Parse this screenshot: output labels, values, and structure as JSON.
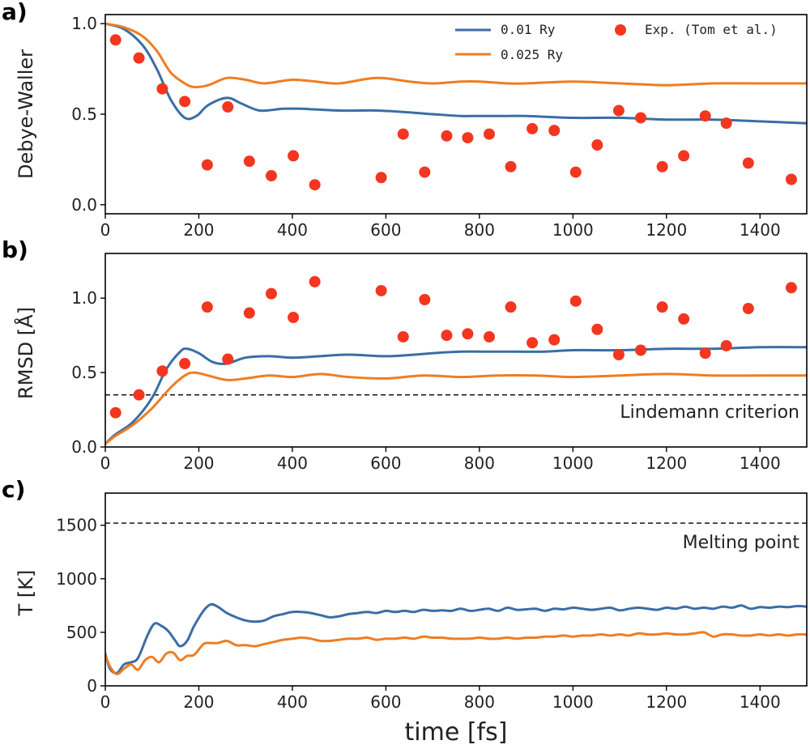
{
  "colors": {
    "blue": "#3a6ea5",
    "orange": "#ef7d22",
    "exp": "#f2361f"
  },
  "chart_data": [
    {
      "panel": "a)",
      "type": "line",
      "ylabel": "Debye-Waller",
      "xlim": [
        0,
        1500
      ],
      "ylim": [
        -0.05,
        1.05
      ],
      "xticks": [
        0,
        200,
        400,
        600,
        800,
        1000,
        1200,
        1400
      ],
      "yticks": [
        0.0,
        0.5,
        1.0
      ],
      "ytick_labels": [
        "0.0",
        "0.5",
        "1.0"
      ],
      "legend": {
        "position": "top-right",
        "entries": [
          "0.01 Ry",
          "0.025 Ry",
          "Exp. (Tom et al.)"
        ]
      },
      "series": [
        {
          "name": "0.01 Ry",
          "color": "blue",
          "x": [
            0,
            40,
            80,
            110,
            140,
            170,
            195,
            220,
            260,
            290,
            330,
            380,
            420,
            500,
            580,
            650,
            700,
            760,
            800,
            860,
            900,
            1000,
            1100,
            1200,
            1300,
            1400,
            1500
          ],
          "y": [
            1.0,
            0.97,
            0.88,
            0.75,
            0.58,
            0.48,
            0.49,
            0.55,
            0.59,
            0.56,
            0.52,
            0.53,
            0.53,
            0.52,
            0.52,
            0.51,
            0.5,
            0.49,
            0.49,
            0.49,
            0.49,
            0.48,
            0.48,
            0.47,
            0.47,
            0.46,
            0.45
          ]
        },
        {
          "name": "0.025 Ry",
          "color": "orange",
          "x": [
            0,
            40,
            80,
            110,
            140,
            170,
            190,
            220,
            260,
            300,
            340,
            400,
            450,
            500,
            580,
            650,
            700,
            760,
            800,
            860,
            900,
            1000,
            1100,
            1200,
            1300,
            1400,
            1500
          ],
          "y": [
            1.0,
            0.98,
            0.93,
            0.85,
            0.73,
            0.67,
            0.65,
            0.66,
            0.7,
            0.69,
            0.67,
            0.69,
            0.68,
            0.67,
            0.7,
            0.68,
            0.67,
            0.68,
            0.68,
            0.67,
            0.67,
            0.68,
            0.67,
            0.66,
            0.67,
            0.67,
            0.67
          ]
        }
      ],
      "scatter": {
        "name": "Exp. (Tom et al.)",
        "color": "exp",
        "x": [
          22,
          72,
          122,
          170,
          218,
          262,
          308,
          355,
          402,
          448,
          590,
          637,
          683,
          730,
          775,
          821,
          867,
          913,
          960,
          1006,
          1052,
          1098,
          1145,
          1191,
          1237,
          1283,
          1328,
          1375,
          1467
        ],
        "y": [
          0.91,
          0.81,
          0.64,
          0.57,
          0.22,
          0.54,
          0.24,
          0.16,
          0.27,
          0.11,
          0.15,
          0.39,
          0.18,
          0.38,
          0.37,
          0.39,
          0.21,
          0.42,
          0.41,
          0.18,
          0.33,
          0.52,
          0.48,
          0.21,
          0.27,
          0.49,
          0.45,
          0.23,
          0.14
        ]
      }
    },
    {
      "panel": "b)",
      "type": "line",
      "ylabel": "RMSD [Å]",
      "xlim": [
        0,
        1500
      ],
      "ylim": [
        0.0,
        1.3
      ],
      "xticks": [
        0,
        200,
        400,
        600,
        800,
        1000,
        1200,
        1400
      ],
      "yticks": [
        0.0,
        0.5,
        1.0
      ],
      "ytick_labels": [
        "0.0",
        "0.5",
        "1.0"
      ],
      "reference": {
        "y": 0.35,
        "label": "Lindemann criterion"
      },
      "series": [
        {
          "name": "0.01 Ry",
          "color": "blue",
          "x": [
            0,
            20,
            60,
            100,
            130,
            160,
            175,
            200,
            230,
            260,
            300,
            350,
            400,
            460,
            520,
            600,
            660,
            700,
            760,
            820,
            880,
            940,
            1000,
            1100,
            1200,
            1300,
            1400,
            1500
          ],
          "y": [
            0.02,
            0.08,
            0.17,
            0.33,
            0.52,
            0.64,
            0.66,
            0.63,
            0.57,
            0.56,
            0.6,
            0.61,
            0.6,
            0.61,
            0.62,
            0.61,
            0.62,
            0.63,
            0.64,
            0.64,
            0.64,
            0.64,
            0.65,
            0.65,
            0.66,
            0.66,
            0.67,
            0.67
          ]
        },
        {
          "name": "0.025 Ry",
          "color": "orange",
          "x": [
            0,
            20,
            60,
            100,
            140,
            170,
            190,
            220,
            260,
            300,
            350,
            400,
            460,
            520,
            600,
            680,
            760,
            840,
            920,
            1000,
            1100,
            1200,
            1300,
            1400,
            1500
          ],
          "y": [
            0.02,
            0.07,
            0.15,
            0.26,
            0.4,
            0.48,
            0.5,
            0.48,
            0.45,
            0.46,
            0.48,
            0.47,
            0.49,
            0.47,
            0.46,
            0.48,
            0.47,
            0.48,
            0.48,
            0.47,
            0.48,
            0.49,
            0.48,
            0.48,
            0.48
          ]
        }
      ],
      "scatter": {
        "name": "Exp. (Tom et al.)",
        "color": "exp",
        "x": [
          22,
          72,
          122,
          170,
          218,
          262,
          308,
          355,
          402,
          448,
          590,
          637,
          683,
          730,
          775,
          821,
          867,
          913,
          960,
          1006,
          1052,
          1098,
          1145,
          1191,
          1237,
          1283,
          1328,
          1375,
          1467
        ],
        "y": [
          0.23,
          0.35,
          0.51,
          0.56,
          0.94,
          0.59,
          0.9,
          1.03,
          0.87,
          1.11,
          1.05,
          0.74,
          0.99,
          0.75,
          0.76,
          0.74,
          0.94,
          0.7,
          0.72,
          0.98,
          0.79,
          0.62,
          0.65,
          0.94,
          0.86,
          0.63,
          0.68,
          0.93,
          1.07
        ]
      }
    },
    {
      "panel": "c)",
      "type": "line",
      "ylabel": "T [K]",
      "xlabel": "time [fs]",
      "xlim": [
        0,
        1500
      ],
      "ylim": [
        0,
        1800
      ],
      "xticks": [
        0,
        200,
        400,
        600,
        800,
        1000,
        1200,
        1400
      ],
      "yticks": [
        0,
        500,
        1000,
        1500
      ],
      "ytick_labels": [
        "0",
        "500",
        "1000",
        "1500"
      ],
      "reference": {
        "y": 1520,
        "label": "Melting point"
      },
      "series": [
        {
          "name": "0.01 Ry",
          "color": "blue",
          "x": [
            0,
            10,
            25,
            40,
            55,
            70,
            90,
            105,
            120,
            135,
            150,
            160,
            175,
            190,
            210,
            225,
            240,
            260,
            280,
            300,
            320,
            340,
            360,
            380,
            400,
            420,
            440,
            460,
            480,
            500,
            520,
            540,
            560,
            580,
            600,
            620,
            640,
            660,
            680,
            700,
            720,
            740,
            760,
            780,
            800,
            820,
            840,
            860,
            880,
            900,
            920,
            940,
            960,
            980,
            1000,
            1020,
            1040,
            1060,
            1080,
            1100,
            1120,
            1140,
            1160,
            1180,
            1200,
            1220,
            1240,
            1260,
            1280,
            1300,
            1320,
            1340,
            1360,
            1380,
            1400,
            1420,
            1440,
            1460,
            1480,
            1500
          ],
          "y": [
            300,
            160,
            120,
            200,
            220,
            260,
            470,
            580,
            560,
            510,
            420,
            370,
            420,
            560,
            700,
            760,
            740,
            680,
            640,
            610,
            600,
            610,
            650,
            670,
            690,
            690,
            680,
            660,
            640,
            650,
            670,
            680,
            690,
            680,
            700,
            690,
            700,
            690,
            710,
            700,
            705,
            700,
            720,
            700,
            710,
            720,
            700,
            730,
            710,
            715,
            720,
            700,
            720,
            715,
            730,
            720,
            710,
            720,
            730,
            705,
            720,
            730,
            720,
            710,
            730,
            720,
            740,
            720,
            730,
            720,
            740,
            730,
            750,
            720,
            735,
            730,
            740,
            735,
            745,
            740
          ]
        },
        {
          "name": "0.025 Ry",
          "color": "orange",
          "x": [
            0,
            10,
            25,
            40,
            55,
            70,
            85,
            100,
            115,
            130,
            145,
            160,
            175,
            190,
            210,
            225,
            240,
            260,
            280,
            300,
            320,
            340,
            360,
            380,
            400,
            420,
            440,
            460,
            480,
            500,
            520,
            540,
            560,
            580,
            600,
            620,
            640,
            660,
            680,
            700,
            720,
            740,
            760,
            780,
            800,
            820,
            840,
            860,
            880,
            900,
            920,
            940,
            960,
            980,
            1000,
            1020,
            1040,
            1060,
            1080,
            1100,
            1120,
            1140,
            1160,
            1180,
            1200,
            1220,
            1240,
            1260,
            1280,
            1300,
            1320,
            1340,
            1360,
            1380,
            1400,
            1420,
            1440,
            1460,
            1480,
            1500
          ],
          "y": [
            290,
            180,
            110,
            160,
            200,
            150,
            240,
            270,
            220,
            300,
            310,
            240,
            280,
            290,
            390,
            400,
            400,
            420,
            380,
            380,
            370,
            390,
            410,
            430,
            440,
            450,
            440,
            420,
            420,
            430,
            440,
            440,
            450,
            430,
            440,
            440,
            450,
            440,
            460,
            450,
            450,
            440,
            440,
            440,
            450,
            440,
            440,
            450,
            440,
            450,
            450,
            460,
            460,
            470,
            460,
            470,
            470,
            480,
            470,
            480,
            470,
            490,
            480,
            480,
            490,
            480,
            480,
            490,
            500,
            460,
            480,
            480,
            470,
            470,
            480,
            470,
            480,
            470,
            480,
            480
          ]
        }
      ]
    }
  ]
}
